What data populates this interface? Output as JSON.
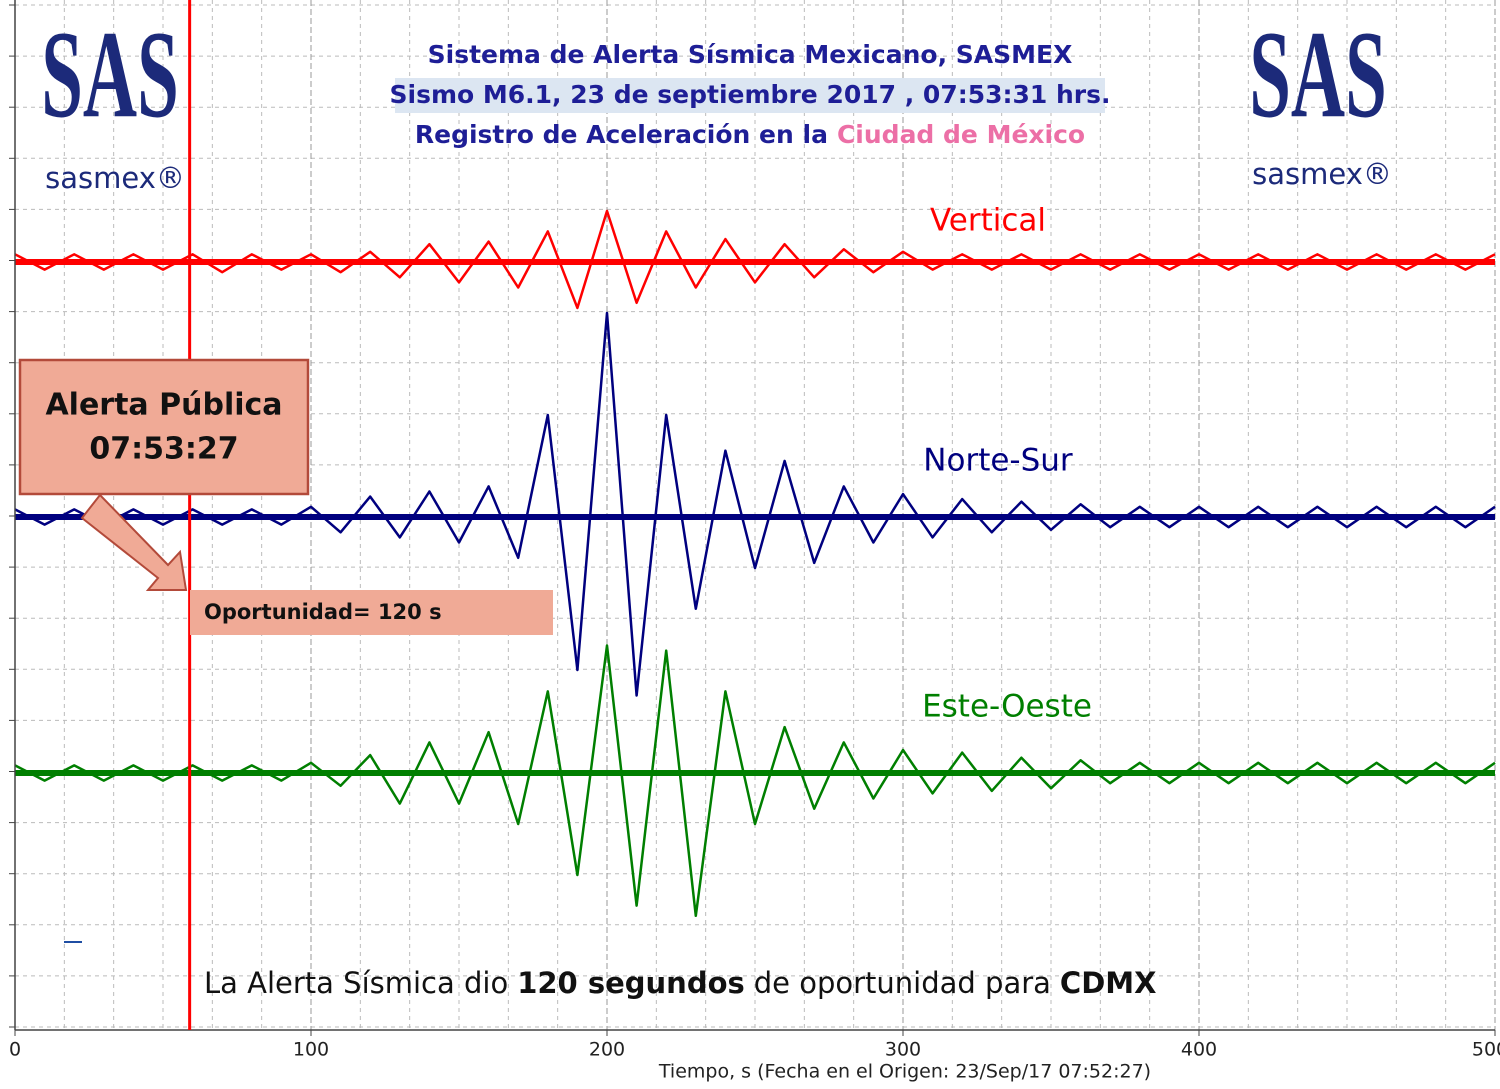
{
  "chart_data": {
    "type": "seismogram",
    "title_lines": [
      "Sistema de Alerta Sísmica Mexicano, SASMEX",
      "Sismo M6.1, 23 de septiembre 2017 , 07:53:31 hrs.",
      "Registro de Aceleración en la"
    ],
    "title_highlight": "Ciudad de México",
    "logo_text": "SAS",
    "logo_brand": "sasmex®",
    "xlabel": "Tiempo, s  (Fecha en el Origen: 23/Sep/17 07:52:27)",
    "xlim": [
      0,
      500
    ],
    "xticks": [
      0,
      100,
      200,
      300,
      400,
      500
    ],
    "ylim": [
      -5,
      5
    ],
    "grid": true,
    "x": [
      0,
      10,
      20,
      30,
      40,
      50,
      60,
      70,
      80,
      90,
      100,
      110,
      120,
      130,
      140,
      150,
      160,
      170,
      180,
      190,
      200,
      210,
      220,
      230,
      240,
      250,
      260,
      270,
      280,
      290,
      300,
      310,
      320,
      330,
      340,
      350,
      360,
      370,
      380,
      390,
      400,
      410,
      420,
      430,
      440,
      450,
      460,
      470,
      480,
      490,
      500
    ],
    "series": [
      {
        "name": "Vertical",
        "color": "#ff0000",
        "values": [
          0.15,
          0.15,
          0.15,
          0.15,
          0.15,
          0.15,
          0.15,
          0.2,
          0.15,
          0.15,
          0.15,
          0.2,
          0.2,
          0.3,
          0.35,
          0.4,
          0.4,
          0.5,
          0.6,
          0.9,
          1.0,
          0.8,
          0.6,
          0.5,
          0.45,
          0.4,
          0.35,
          0.3,
          0.25,
          0.2,
          0.2,
          0.15,
          0.15,
          0.15,
          0.15,
          0.15,
          0.15,
          0.15,
          0.15,
          0.15,
          0.15,
          0.15,
          0.15,
          0.15,
          0.15,
          0.15,
          0.15,
          0.15,
          0.15,
          0.15,
          0.15
        ]
      },
      {
        "name": "Norte-Sur",
        "color": "#00007f",
        "values": [
          0.15,
          0.15,
          0.15,
          0.15,
          0.15,
          0.15,
          0.15,
          0.15,
          0.15,
          0.15,
          0.2,
          0.3,
          0.4,
          0.4,
          0.5,
          0.5,
          0.6,
          0.8,
          2.0,
          3.0,
          4.0,
          3.5,
          2.0,
          1.8,
          1.3,
          1.0,
          1.1,
          0.9,
          0.6,
          0.5,
          0.45,
          0.4,
          0.35,
          0.3,
          0.3,
          0.25,
          0.25,
          0.2,
          0.2,
          0.2,
          0.2,
          0.2,
          0.2,
          0.2,
          0.2,
          0.2,
          0.2,
          0.2,
          0.2,
          0.2,
          0.2
        ]
      },
      {
        "name": "Este-Oeste",
        "color": "#007f00",
        "values": [
          0.15,
          0.15,
          0.15,
          0.15,
          0.15,
          0.15,
          0.15,
          0.15,
          0.15,
          0.15,
          0.2,
          0.25,
          0.35,
          0.6,
          0.6,
          0.6,
          0.8,
          1.0,
          1.6,
          2.0,
          2.5,
          2.6,
          2.4,
          2.8,
          1.6,
          1.0,
          0.9,
          0.7,
          0.6,
          0.5,
          0.45,
          0.4,
          0.4,
          0.35,
          0.3,
          0.3,
          0.25,
          0.2,
          0.2,
          0.2,
          0.2,
          0.2,
          0.2,
          0.2,
          0.2,
          0.2,
          0.2,
          0.2,
          0.2,
          0.2,
          0.2
        ]
      }
    ],
    "alert_time": 59,
    "alert_label": [
      "Alerta Pública",
      "07:53:27"
    ],
    "opportunity_label": "Oportunidad= 120 s",
    "note": [
      "La Alerta Sísmica dio",
      "120 segundos",
      "de oportunidad para",
      "CDMX"
    ]
  }
}
